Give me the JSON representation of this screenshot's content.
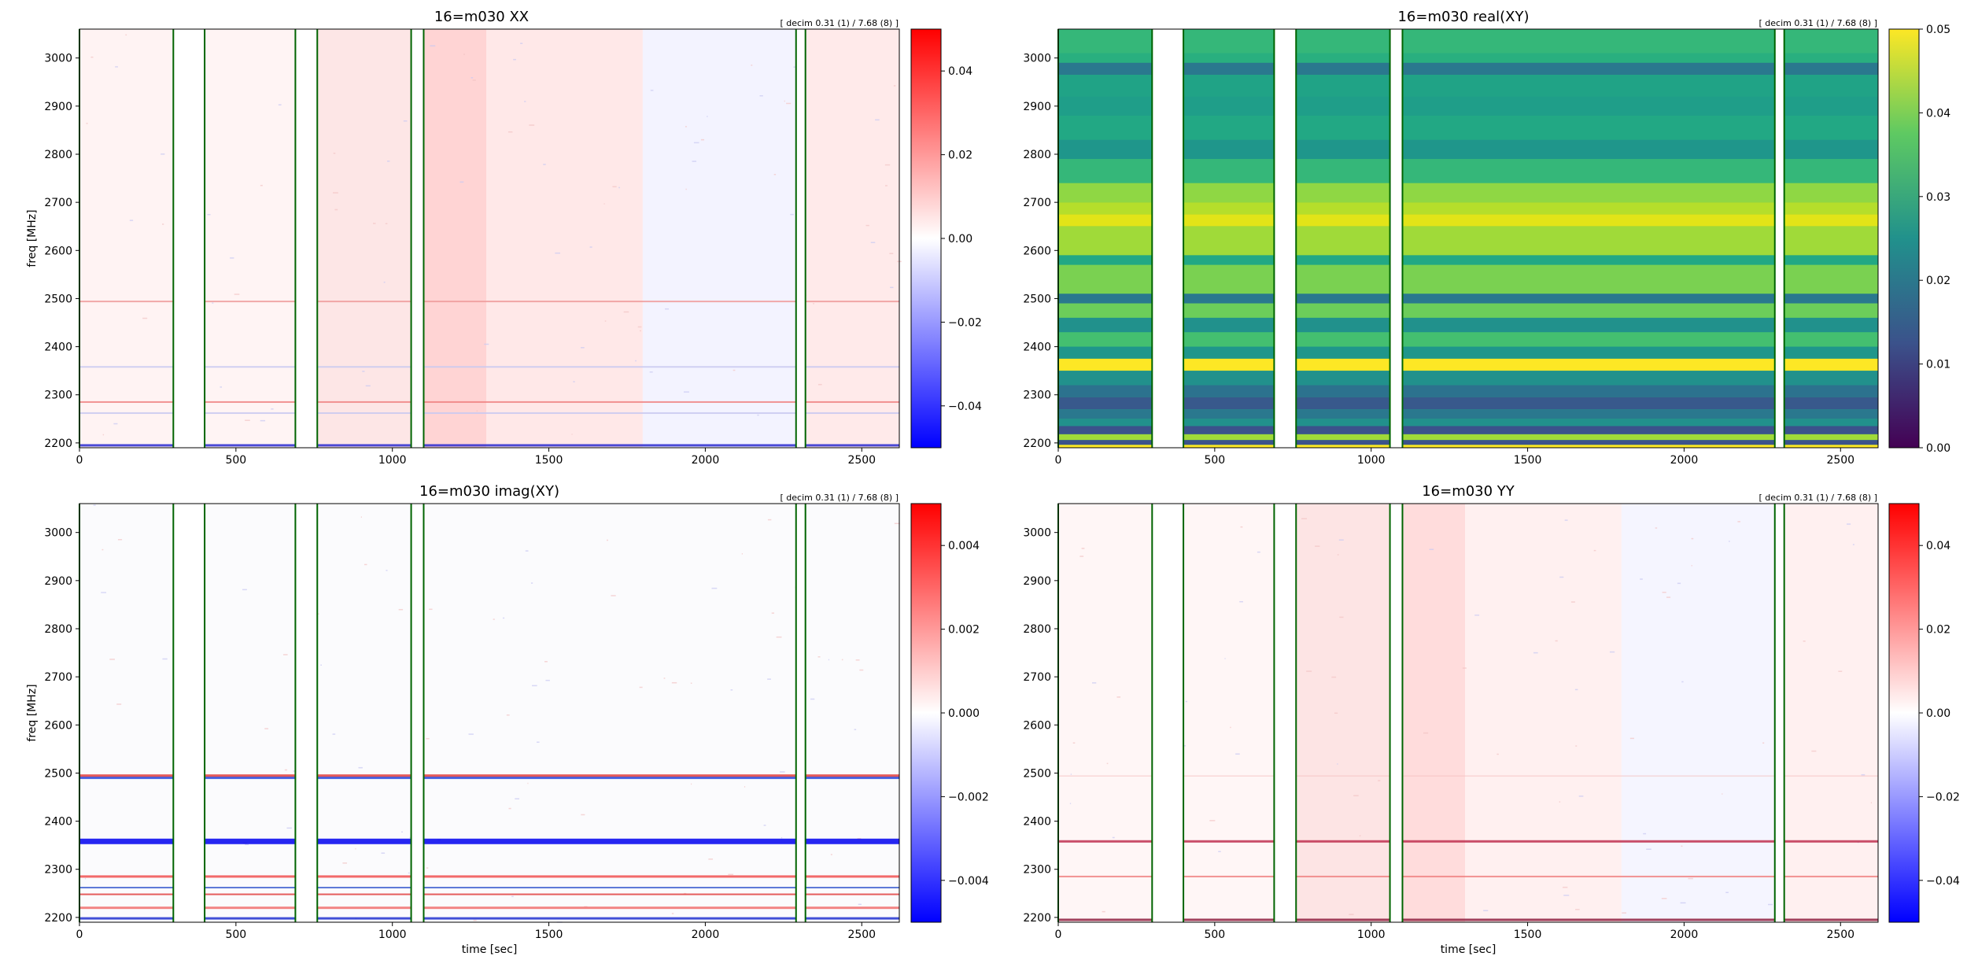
{
  "chart_data": [
    {
      "type": "heatmap",
      "panel": "top-left",
      "title": "16=m030  XX",
      "corner_note": "[ decim 0.31 (1) / 7.68 (8) ]",
      "xlabel": "",
      "ylabel": "freq [MHz]",
      "xlim": [
        0,
        2620
      ],
      "ylim": [
        2190,
        3060
      ],
      "x_ticks": [
        "0",
        "500",
        "1000",
        "1500",
        "2000",
        "2500"
      ],
      "y_ticks": [
        "2200",
        "2300",
        "2400",
        "2500",
        "2600",
        "2700",
        "2800",
        "2900",
        "3000"
      ],
      "colormap": "bwr",
      "clim": [
        -0.05,
        0.05
      ],
      "colorbar_ticks": [
        "0.04",
        "0.02",
        "0.00",
        "−0.02",
        "−0.04"
      ],
      "colorbar_values": [
        0.04,
        0.02,
        0.0,
        -0.02,
        -0.04
      ],
      "gap_line_color": "#006400"
    },
    {
      "type": "heatmap",
      "panel": "top-right",
      "title": "16=m030  real(XY)",
      "corner_note": "[ decim 0.31 (1) / 7.68 (8) ]",
      "xlabel": "",
      "ylabel": "",
      "xlim": [
        0,
        2620
      ],
      "ylim": [
        2190,
        3060
      ],
      "x_ticks": [
        "0",
        "500",
        "1000",
        "1500",
        "2000",
        "2500"
      ],
      "y_ticks": [
        "2200",
        "2300",
        "2400",
        "2500",
        "2600",
        "2700",
        "2800",
        "2900",
        "3000"
      ],
      "colormap": "viridis",
      "clim": [
        0,
        0.05
      ],
      "colorbar_ticks": [
        "0.05",
        "0.04",
        "0.03",
        "0.02",
        "0.01",
        "0.00"
      ],
      "colorbar_values": [
        0.05,
        0.04,
        0.03,
        0.02,
        0.01,
        0.0
      ],
      "gap_line_color": "#006400"
    },
    {
      "type": "heatmap",
      "panel": "bottom-left",
      "title": "16=m030  imag(XY)",
      "corner_note": "[ decim 0.31 (1) / 7.68 (8) ]",
      "xlabel": "time [sec]",
      "ylabel": "freq [MHz]",
      "xlim": [
        0,
        2620
      ],
      "ylim": [
        2190,
        3060
      ],
      "x_ticks": [
        "0",
        "500",
        "1000",
        "1500",
        "2000",
        "2500"
      ],
      "y_ticks": [
        "2200",
        "2300",
        "2400",
        "2500",
        "2600",
        "2700",
        "2800",
        "2900",
        "3000"
      ],
      "colormap": "bwr",
      "clim": [
        -0.005,
        0.005
      ],
      "colorbar_ticks": [
        "0.004",
        "0.002",
        "0.000",
        "−0.002",
        "−0.004"
      ],
      "colorbar_values": [
        0.004,
        0.002,
        0.0,
        -0.002,
        -0.004
      ],
      "gap_line_color": "#006400"
    },
    {
      "type": "heatmap",
      "panel": "bottom-right",
      "title": "16=m030  YY",
      "corner_note": "[ decim 0.31 (1) / 7.68 (8) ]",
      "xlabel": "time [sec]",
      "ylabel": "",
      "xlim": [
        0,
        2620
      ],
      "ylim": [
        2190,
        3060
      ],
      "x_ticks": [
        "0",
        "500",
        "1000",
        "1500",
        "2000",
        "2500"
      ],
      "y_ticks": [
        "2200",
        "2300",
        "2400",
        "2500",
        "2600",
        "2700",
        "2800",
        "2900",
        "3000"
      ],
      "colormap": "bwr",
      "clim": [
        -0.05,
        0.05
      ],
      "colorbar_ticks": [
        "0.04",
        "0.02",
        "0.00",
        "−0.02",
        "−0.04"
      ],
      "colorbar_values": [
        0.04,
        0.02,
        0.0,
        -0.02,
        -0.04
      ],
      "gap_line_color": "#006400"
    }
  ]
}
